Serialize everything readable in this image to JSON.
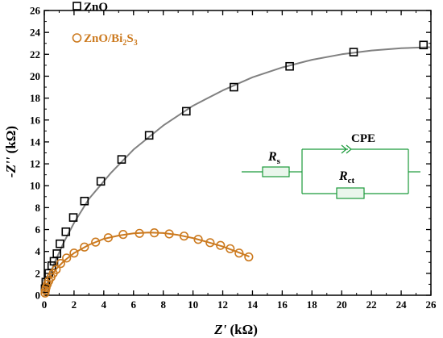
{
  "chart_data": {
    "type": "scatter",
    "title": "",
    "x_axis": {
      "label_main": "Z'",
      "label_unit": " (kΩ)",
      "min": 0,
      "max": 26,
      "major_ticks": [
        0,
        2,
        4,
        6,
        8,
        10,
        12,
        14,
        16,
        18,
        20,
        22,
        24,
        26
      ],
      "minor_step": 1
    },
    "y_axis": {
      "label_main": "-Z''",
      "label_unit": " (kΩ)",
      "min": 0,
      "max": 26,
      "major_ticks": [
        0,
        2,
        4,
        6,
        8,
        10,
        12,
        14,
        16,
        18,
        20,
        22,
        24,
        26
      ],
      "minor_step": 1
    },
    "grid": false,
    "legend_position": "top-left",
    "series": [
      {
        "name": "ZnO",
        "marker": "square",
        "marker_color": "#000000",
        "fit_color": "#808080",
        "points": [
          [
            0.05,
            0.6
          ],
          [
            0.1,
            1.2
          ],
          [
            0.3,
            2.0
          ],
          [
            0.5,
            2.7
          ],
          [
            0.65,
            3.1
          ],
          [
            0.85,
            3.8
          ],
          [
            1.05,
            4.7
          ],
          [
            1.45,
            5.8
          ],
          [
            1.95,
            7.1
          ],
          [
            2.7,
            8.6
          ],
          [
            3.8,
            10.4
          ],
          [
            5.2,
            12.4
          ],
          [
            7.05,
            14.6
          ],
          [
            9.55,
            16.8
          ],
          [
            12.75,
            19.0
          ],
          [
            16.5,
            20.9
          ],
          [
            20.8,
            22.2
          ],
          [
            25.5,
            22.85
          ]
        ],
        "fit": [
          [
            0,
            0
          ],
          [
            0.3,
            1.6
          ],
          [
            0.7,
            3.0
          ],
          [
            1.3,
            4.8
          ],
          [
            2.0,
            6.6
          ],
          [
            3.0,
            8.8
          ],
          [
            4.5,
            11.2
          ],
          [
            6.0,
            13.3
          ],
          [
            8.0,
            15.5
          ],
          [
            10.0,
            17.3
          ],
          [
            12.0,
            18.7
          ],
          [
            14.0,
            19.9
          ],
          [
            16.0,
            20.8
          ],
          [
            18.0,
            21.5
          ],
          [
            20.0,
            22.0
          ],
          [
            22.0,
            22.35
          ],
          [
            24.0,
            22.55
          ],
          [
            25.9,
            22.65
          ]
        ]
      },
      {
        "name_parts": [
          "ZnO/Bi",
          "2",
          "S",
          "3"
        ],
        "name": "ZnO/Bi2S3",
        "marker": "circle",
        "marker_color": "#cc7a1f",
        "fit_color": "#cc7a1f",
        "points": [
          [
            0.05,
            0.2
          ],
          [
            0.08,
            0.45
          ],
          [
            0.12,
            0.7
          ],
          [
            0.2,
            1.0
          ],
          [
            0.3,
            1.3
          ],
          [
            0.45,
            1.65
          ],
          [
            0.6,
            2.0
          ],
          [
            0.8,
            2.35
          ],
          [
            1.1,
            2.9
          ],
          [
            1.5,
            3.4
          ],
          [
            2.0,
            3.85
          ],
          [
            2.7,
            4.4
          ],
          [
            3.45,
            4.85
          ],
          [
            4.3,
            5.25
          ],
          [
            5.3,
            5.55
          ],
          [
            6.4,
            5.65
          ],
          [
            7.4,
            5.7
          ],
          [
            8.4,
            5.6
          ],
          [
            9.4,
            5.4
          ],
          [
            10.35,
            5.1
          ],
          [
            11.15,
            4.8
          ],
          [
            11.85,
            4.55
          ],
          [
            12.5,
            4.25
          ],
          [
            13.1,
            3.85
          ],
          [
            13.75,
            3.5
          ]
        ],
        "fit": [
          [
            0,
            0
          ],
          [
            0.15,
            0.8
          ],
          [
            0.4,
            1.6
          ],
          [
            0.8,
            2.4
          ],
          [
            1.3,
            3.1
          ],
          [
            2.0,
            3.85
          ],
          [
            3.0,
            4.6
          ],
          [
            4.0,
            5.15
          ],
          [
            5.0,
            5.45
          ],
          [
            6.0,
            5.65
          ],
          [
            7.0,
            5.72
          ],
          [
            8.0,
            5.68
          ],
          [
            9.0,
            5.5
          ],
          [
            10.0,
            5.22
          ],
          [
            11.0,
            4.85
          ],
          [
            12.0,
            4.45
          ],
          [
            13.0,
            3.95
          ],
          [
            13.75,
            3.55
          ]
        ]
      }
    ],
    "circuit": {
      "r_s": "R",
      "r_s_sub": "s",
      "cpe": "CPE",
      "r_ct": "R",
      "r_ct_sub": "ct",
      "color": "#1a9a3a"
    }
  }
}
